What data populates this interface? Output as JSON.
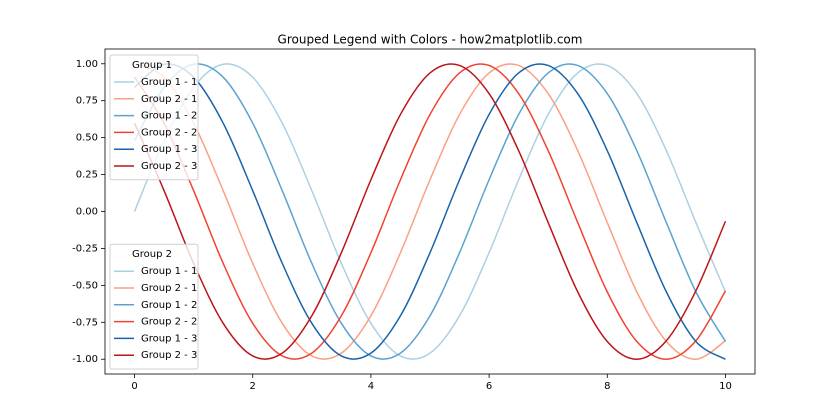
{
  "chart_data": {
    "type": "line",
    "title": "Grouped Legend with Colors - how2matplotlib.com",
    "x": [
      0,
      0.5,
      1,
      1.5,
      2,
      2.5,
      3,
      3.5,
      4,
      4.5,
      5,
      5.5,
      6,
      6.5,
      7,
      7.5,
      8,
      8.5,
      9,
      9.5,
      10
    ],
    "series": [
      {
        "name": "Group 1 - 1",
        "color": "#abd0e6",
        "values": [
          0,
          0.479,
          0.841,
          0.997,
          0.909,
          0.598,
          0.141,
          -0.351,
          -0.757,
          -0.978,
          -0.959,
          -0.706,
          -0.279,
          0.215,
          0.657,
          0.938,
          0.989,
          0.798,
          0.412,
          -0.075,
          -0.544
        ]
      },
      {
        "name": "Group 2 - 1",
        "color": "#fca082",
        "values": [
          0.997,
          0.909,
          0.598,
          0.141,
          -0.351,
          -0.757,
          -0.978,
          -0.959,
          -0.706,
          -0.279,
          0.215,
          0.657,
          0.938,
          0.989,
          0.798,
          0.412,
          -0.075,
          -0.544,
          -0.88,
          -1.0,
          -0.875
        ]
      },
      {
        "name": "Group 1 - 2",
        "color": "#5ba3cf",
        "values": [
          0.479,
          0.841,
          0.997,
          0.909,
          0.598,
          0.141,
          -0.351,
          -0.757,
          -0.978,
          -0.959,
          -0.706,
          -0.279,
          0.215,
          0.657,
          0.938,
          0.989,
          0.798,
          0.412,
          -0.075,
          -0.544,
          -0.88
        ]
      },
      {
        "name": "Group 2 - 2",
        "color": "#f14331",
        "values": [
          0.909,
          0.598,
          0.141,
          -0.351,
          -0.757,
          -0.978,
          -0.959,
          -0.706,
          -0.279,
          0.215,
          0.657,
          0.938,
          0.989,
          0.798,
          0.412,
          -0.075,
          -0.544,
          -0.88,
          -1.0,
          -0.875,
          -0.537
        ]
      },
      {
        "name": "Group 1 - 3",
        "color": "#1764ab",
        "values": [
          0.841,
          0.997,
          0.909,
          0.598,
          0.141,
          -0.351,
          -0.757,
          -0.978,
          -0.959,
          -0.706,
          -0.279,
          0.215,
          0.657,
          0.938,
          0.989,
          0.798,
          0.412,
          -0.075,
          -0.544,
          -0.88,
          -1.0
        ]
      },
      {
        "name": "Group 2 - 3",
        "color": "#bc141a",
        "values": [
          0.598,
          0.141,
          -0.351,
          -0.757,
          -0.978,
          -0.959,
          -0.706,
          -0.279,
          0.215,
          0.657,
          0.938,
          0.989,
          0.798,
          0.412,
          -0.075,
          -0.544,
          -0.88,
          -1.0,
          -0.875,
          -0.537,
          -0.066
        ]
      }
    ],
    "xlim": [
      -0.5,
      10.5
    ],
    "xticks": [
      0,
      2,
      4,
      6,
      8,
      10
    ],
    "ylim": [
      -1.1,
      1.1
    ],
    "yticks": [
      {
        "value": -1,
        "label": "-1.00"
      },
      {
        "value": -0.75,
        "label": "-0.75"
      },
      {
        "value": -0.5,
        "label": "-0.50"
      },
      {
        "value": -0.25,
        "label": "-0.25"
      },
      {
        "value": 0,
        "label": "0.00"
      },
      {
        "value": 0.25,
        "label": "0.25"
      },
      {
        "value": 0.5,
        "label": "0.50"
      },
      {
        "value": 0.75,
        "label": "0.75"
      },
      {
        "value": 1,
        "label": "1.00"
      }
    ],
    "legends": [
      {
        "title": "Group 1",
        "loc": "upper left"
      },
      {
        "title": "Group 2",
        "loc": "lower left"
      }
    ]
  }
}
